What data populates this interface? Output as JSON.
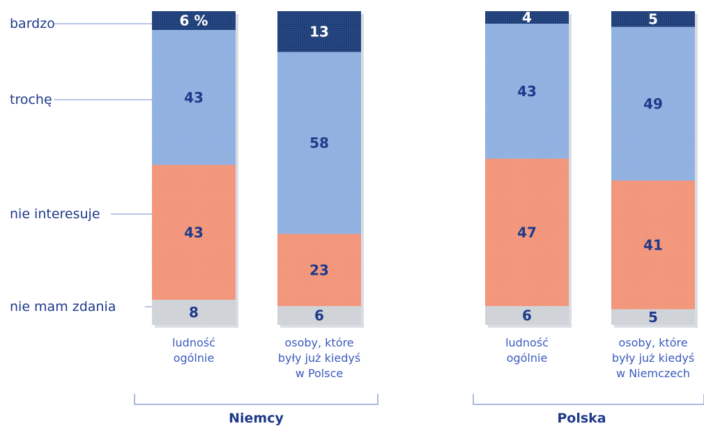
{
  "chart_data": {
    "type": "bar",
    "stacked": true,
    "unit_note": "6 %",
    "legend": [
      {
        "key": "bardzo",
        "label": "bardzo",
        "color": "#1f3f7a"
      },
      {
        "key": "troche",
        "label": "trochę",
        "color": "#8fb0e0"
      },
      {
        "key": "nie_interesuje",
        "label": "nie interesuje",
        "color": "#f2957a"
      },
      {
        "key": "nie_mam_zdania",
        "label": "nie mam zdania",
        "color": "#cfd3d8"
      }
    ],
    "groups": [
      {
        "label": "Niemcy",
        "bars": [
          {
            "category_lines": [
              "ludność",
              "ogólnie"
            ],
            "values": {
              "bardzo": 6,
              "troche": 43,
              "nie_interesuje": 43,
              "nie_mam_zdania": 8
            },
            "labels": {
              "bardzo": "6 %",
              "troche": "43",
              "nie_interesuje": "43",
              "nie_mam_zdania": "8"
            }
          },
          {
            "category_lines": [
              "osoby, które",
              "były już kiedyś",
              "w Polsce"
            ],
            "values": {
              "bardzo": 13,
              "troche": 58,
              "nie_interesuje": 23,
              "nie_mam_zdania": 6
            },
            "labels": {
              "bardzo": "13",
              "troche": "58",
              "nie_interesuje": "23",
              "nie_mam_zdania": "6"
            }
          }
        ]
      },
      {
        "label": "Polska",
        "bars": [
          {
            "category_lines": [
              "ludność",
              "ogólnie"
            ],
            "values": {
              "bardzo": 4,
              "troche": 43,
              "nie_interesuje": 47,
              "nie_mam_zdania": 6
            },
            "labels": {
              "bardzo": "4",
              "troche": "43",
              "nie_interesuje": "47",
              "nie_mam_zdania": "6"
            }
          },
          {
            "category_lines": [
              "osoby, które",
              "były już kiedyś",
              "w Niemczech"
            ],
            "values": {
              "bardzo": 5,
              "troche": 49,
              "nie_interesuje": 41,
              "nie_mam_zdania": 5
            },
            "labels": {
              "bardzo": "5",
              "troche": "49",
              "nie_interesuje": "41",
              "nie_mam_zdania": "5"
            }
          }
        ]
      }
    ]
  }
}
